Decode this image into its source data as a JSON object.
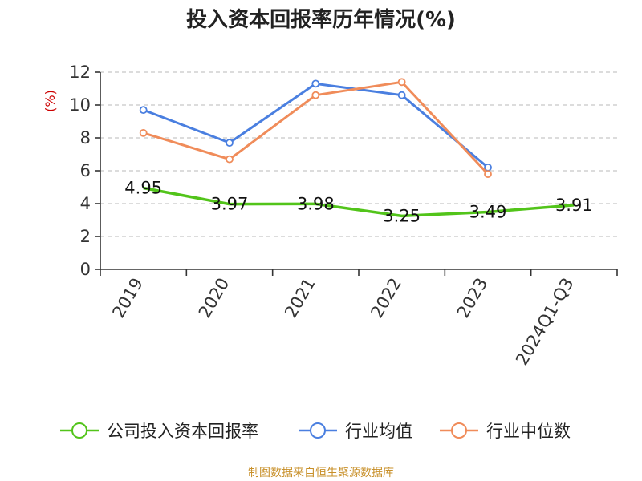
{
  "chart_data": {
    "type": "line",
    "title": "投入资本回报率历年情况(%)",
    "ylabel": "(%)",
    "xlabel": "",
    "categories": [
      "2019",
      "2020",
      "2021",
      "2022",
      "2023",
      "2024Q1-Q3"
    ],
    "ylim": [
      0,
      12
    ],
    "yticks": [
      0,
      2,
      4,
      6,
      8,
      10,
      12
    ],
    "grid": true,
    "legend_position": "bottom",
    "series": [
      {
        "name": "公司投入资本回报率",
        "color": "#52c41a",
        "values": [
          4.95,
          3.97,
          3.98,
          3.25,
          3.49,
          3.91
        ],
        "labels": [
          "4.95",
          "3.97",
          "3.98",
          "3.25",
          "3.49",
          "3.91"
        ]
      },
      {
        "name": "行业均值",
        "color": "#4a7fe0",
        "values": [
          9.7,
          7.7,
          11.3,
          10.6,
          6.2,
          null
        ]
      },
      {
        "name": "行业中位数",
        "color": "#f08c5a",
        "values": [
          8.3,
          6.7,
          10.6,
          11.4,
          5.8,
          null
        ]
      }
    ]
  },
  "footer": {
    "source": "制图数据来自恒生聚源数据库"
  }
}
